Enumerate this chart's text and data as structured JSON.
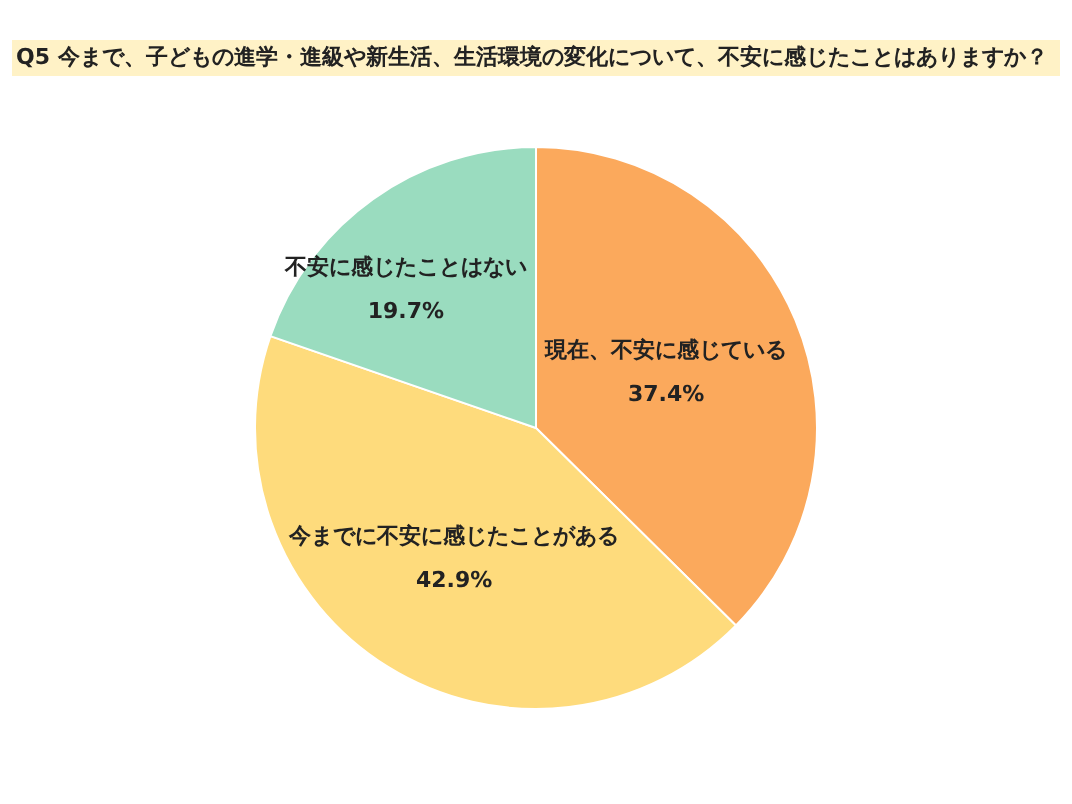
{
  "chart_data": {
    "type": "pie",
    "title": "Q5 今まで、子どもの進学・進級や新生活、生活環境の変化について、不安に感じたことはありますか？",
    "categories": [
      "現在、不安に感じている",
      "今までに不安に感じたことがある",
      "不安に感じたことはない"
    ],
    "values": [
      37.4,
      42.9,
      19.7
    ],
    "value_labels": [
      "37.4%",
      "42.9%",
      "19.7%"
    ],
    "colors": [
      "#fba95c",
      "#fedb7c",
      "#9adcbf"
    ],
    "legend": false
  }
}
